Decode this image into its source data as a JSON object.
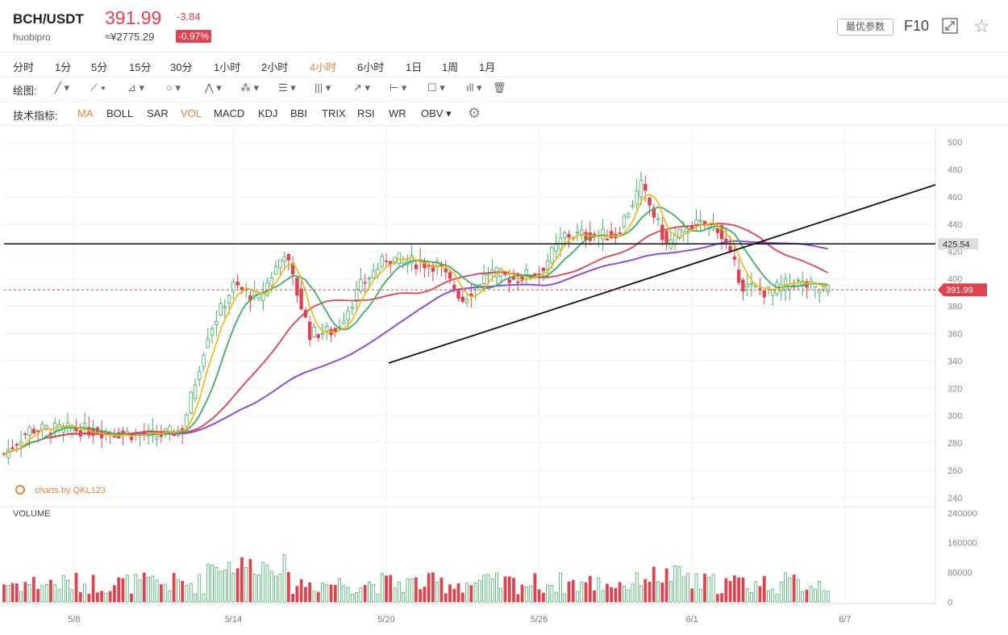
{
  "header": {
    "symbol": "BCH/USDT",
    "exchange": "huobipro",
    "price": "391.99",
    "cny_price": "≈¥2775.29",
    "change": "-3.84",
    "change_pct": "-0.97%",
    "param_button": "最优参数",
    "f10_label": "F10",
    "up_color": "#e0424e",
    "down_color": "#3fae63"
  },
  "periods": [
    {
      "label": "分时",
      "active": false
    },
    {
      "label": "1分",
      "active": false
    },
    {
      "label": "5分",
      "active": false
    },
    {
      "label": "15分",
      "active": false
    },
    {
      "label": "30分",
      "active": false
    },
    {
      "label": "1小时",
      "active": false
    },
    {
      "label": "2小时",
      "active": false
    },
    {
      "label": "4小时",
      "active": true
    },
    {
      "label": "6小时",
      "active": false
    },
    {
      "label": "1日",
      "active": false
    },
    {
      "label": "1周",
      "active": false
    },
    {
      "label": "1月",
      "active": false
    }
  ],
  "drawing": {
    "label": "绘图:",
    "tools": [
      "line-tool-icon",
      "ray-tool-icon",
      "angle-tool-icon",
      "circle-tool-icon",
      "zigzag-tool-icon",
      "pattern-tool-icon",
      "fibonacci-tool-icon",
      "parallel-tool-icon",
      "arrow-tool-icon",
      "range-tool-icon",
      "note-tool-icon",
      "bars-tool-icon",
      "trash-icon"
    ]
  },
  "indicators": {
    "label": "技术指标:",
    "items": [
      {
        "label": "MA",
        "active": true
      },
      {
        "label": "BOLL",
        "active": false
      },
      {
        "label": "SAR",
        "active": false
      },
      {
        "label": "VOL",
        "active": true
      },
      {
        "label": "MACD",
        "active": false
      },
      {
        "label": "KDJ",
        "active": false
      },
      {
        "label": "BBI",
        "active": false
      },
      {
        "label": "TRIX",
        "active": false
      },
      {
        "label": "RSI",
        "active": false
      },
      {
        "label": "WR",
        "active": false
      },
      {
        "label": "OBV",
        "active": false
      }
    ]
  },
  "chart_data": {
    "type": "candlestick",
    "price_axis": {
      "ticks": [
        240,
        260,
        280,
        300,
        320,
        340,
        360,
        380,
        400,
        420,
        440,
        460,
        480,
        500
      ],
      "ylim": [
        240,
        500
      ]
    },
    "volume_axis": {
      "ticks": [
        0,
        80000,
        160000,
        240000
      ],
      "ylim": [
        0,
        240000
      ]
    },
    "x_ticks": [
      "5/8",
      "5/14",
      "5/20",
      "5/26",
      "6/1",
      "6/7"
    ],
    "watermark": "charts by QKL123",
    "volume_label": "VOLUME",
    "last_price": {
      "value": 391.99,
      "label": "391.99"
    },
    "horizontal_line": {
      "value": 425.54,
      "label": "425.54"
    },
    "ma_colors": {
      "ma1": "#f2b705",
      "ma2": "#3fae63",
      "ma3": "#e0424e",
      "ma4": "#8c4fd6"
    },
    "key_prices": [
      {
        "date": "5/5",
        "price": 272
      },
      {
        "date": "5/6",
        "price": 290
      },
      {
        "date": "5/8",
        "price": 290
      },
      {
        "date": "5/11",
        "price": 285
      },
      {
        "date": "5/12",
        "price": 290
      },
      {
        "date": "5/13",
        "price": 360
      },
      {
        "date": "5/14",
        "price": 395
      },
      {
        "date": "5/15",
        "price": 385
      },
      {
        "date": "5/16",
        "price": 420
      },
      {
        "date": "5/17",
        "price": 360
      },
      {
        "date": "5/18",
        "price": 362
      },
      {
        "date": "5/19",
        "price": 395
      },
      {
        "date": "5/20",
        "price": 415
      },
      {
        "date": "5/22",
        "price": 410
      },
      {
        "date": "5/23",
        "price": 385
      },
      {
        "date": "5/24",
        "price": 405
      },
      {
        "date": "5/25",
        "price": 400
      },
      {
        "date": "5/26",
        "price": 405
      },
      {
        "date": "5/27",
        "price": 432
      },
      {
        "date": "5/29",
        "price": 432
      },
      {
        "date": "5/30",
        "price": 468
      },
      {
        "date": "5/31",
        "price": 425
      },
      {
        "date": "6/1",
        "price": 440
      },
      {
        "date": "6/2",
        "price": 438
      },
      {
        "date": "6/3",
        "price": 395
      },
      {
        "date": "6/4",
        "price": 390
      },
      {
        "date": "6/5",
        "price": 398
      },
      {
        "date": "6/6",
        "price": 392
      }
    ]
  }
}
